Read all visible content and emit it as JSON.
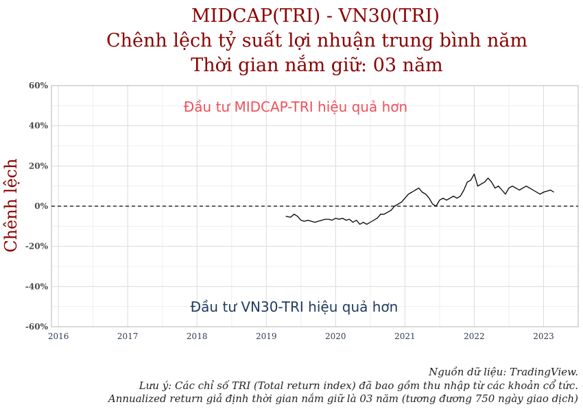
{
  "chart_data": {
    "type": "line",
    "title": [
      "MIDCAP(TRI) - VN30(TRI)",
      "Chênh lệch tỷ suất lợi nhuận trung bình năm",
      "Thời gian nắm giữ: 03 năm"
    ],
    "ylabel": "Chênh lệch",
    "xlabel": "",
    "xlim": [
      2015.9,
      2023.5
    ],
    "ylim": [
      -60,
      60
    ],
    "xticks": [
      2016,
      2017,
      2018,
      2019,
      2020,
      2021,
      2022,
      2023
    ],
    "yticks": [
      -60,
      -40,
      -20,
      0,
      20,
      40,
      60
    ],
    "ytick_labels": [
      "-60%",
      "-40%",
      "-20%",
      "0%",
      "20%",
      "40%",
      "60%"
    ],
    "grid": true,
    "reference_line": {
      "y": 0,
      "style": "dashed"
    },
    "annotations": {
      "top": "Đầu tư MIDCAP-TRI hiệu quả hơn",
      "bottom": "Đầu tư VN30-TRI hiệu quả hơn"
    },
    "series": [
      {
        "color": "#000000",
        "x": [
          2019.28,
          2019.35,
          2019.4,
          2019.45,
          2019.5,
          2019.55,
          2019.6,
          2019.65,
          2019.7,
          2019.75,
          2019.8,
          2019.85,
          2019.9,
          2019.95,
          2020.0,
          2020.05,
          2020.1,
          2020.15,
          2020.2,
          2020.25,
          2020.3,
          2020.35,
          2020.4,
          2020.45,
          2020.5,
          2020.55,
          2020.6,
          2020.65,
          2020.7,
          2020.75,
          2020.8,
          2020.85,
          2020.9,
          2020.95,
          2021.0,
          2021.05,
          2021.1,
          2021.15,
          2021.2,
          2021.25,
          2021.3,
          2021.35,
          2021.4,
          2021.45,
          2021.5,
          2021.55,
          2021.6,
          2021.65,
          2021.7,
          2021.75,
          2021.8,
          2021.85,
          2021.9,
          2021.95,
          2022.0,
          2022.05,
          2022.1,
          2022.15,
          2022.2,
          2022.25,
          2022.3,
          2022.35,
          2022.4,
          2022.45,
          2022.5,
          2022.55,
          2022.6,
          2022.65,
          2022.7,
          2022.75,
          2022.8,
          2022.85,
          2022.9,
          2022.95,
          2023.0,
          2023.05,
          2023.1,
          2023.15
        ],
        "y": [
          -5,
          -5.5,
          -4,
          -5,
          -7,
          -7.5,
          -7,
          -7.5,
          -8,
          -7.5,
          -7,
          -6.5,
          -6.5,
          -7,
          -6,
          -6.5,
          -6,
          -7,
          -6.5,
          -8,
          -7,
          -9,
          -8,
          -9,
          -8,
          -7,
          -6,
          -4,
          -4,
          -3,
          -2,
          0,
          1,
          2,
          4,
          6,
          7,
          8,
          9,
          7,
          6,
          4,
          1,
          0,
          3,
          4,
          3,
          4,
          5,
          4,
          5,
          8,
          12,
          13,
          16,
          10,
          11,
          12,
          14,
          12,
          9,
          10,
          8,
          6,
          9,
          10,
          9,
          8,
          9,
          10,
          9,
          8,
          7,
          6,
          7,
          7.5,
          8,
          7
        ]
      }
    ]
  },
  "footnotes": [
    "Nguồn dữ liệu: TradingView.",
    "Lưu ý: Các chỉ số TRI (Total return index) đã bao gồm thu nhập từ các khoản cổ tức.",
    "Annualized return giả định thời gian nắm giữ là 03 năm (tương đương 750 ngày giao dịch)"
  ],
  "colors": {
    "title": "#8b0000",
    "annotation_top": "#f0505a",
    "annotation_bottom": "#1f3a5f",
    "grid": "#dcdcdc"
  }
}
